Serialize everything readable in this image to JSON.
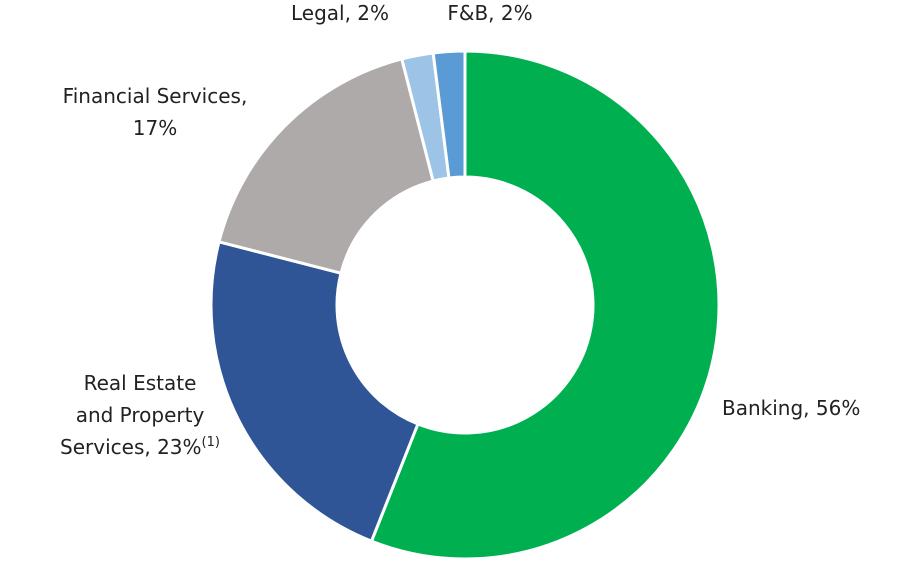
{
  "chart_data": {
    "type": "donut",
    "values": [
      56,
      23,
      17,
      2,
      2
    ],
    "value_labels": [
      "Banking, 56%",
      "Real Estate and Property Services, 23%",
      "Financial Services, 17%",
      "Legal, 2%",
      "F&B, 2%"
    ],
    "colors": [
      "#00b050",
      "#2f5597",
      "#aeaaaa",
      "#9dc3e6",
      "#5b9bd5"
    ],
    "annotation": "(1)"
  }
}
